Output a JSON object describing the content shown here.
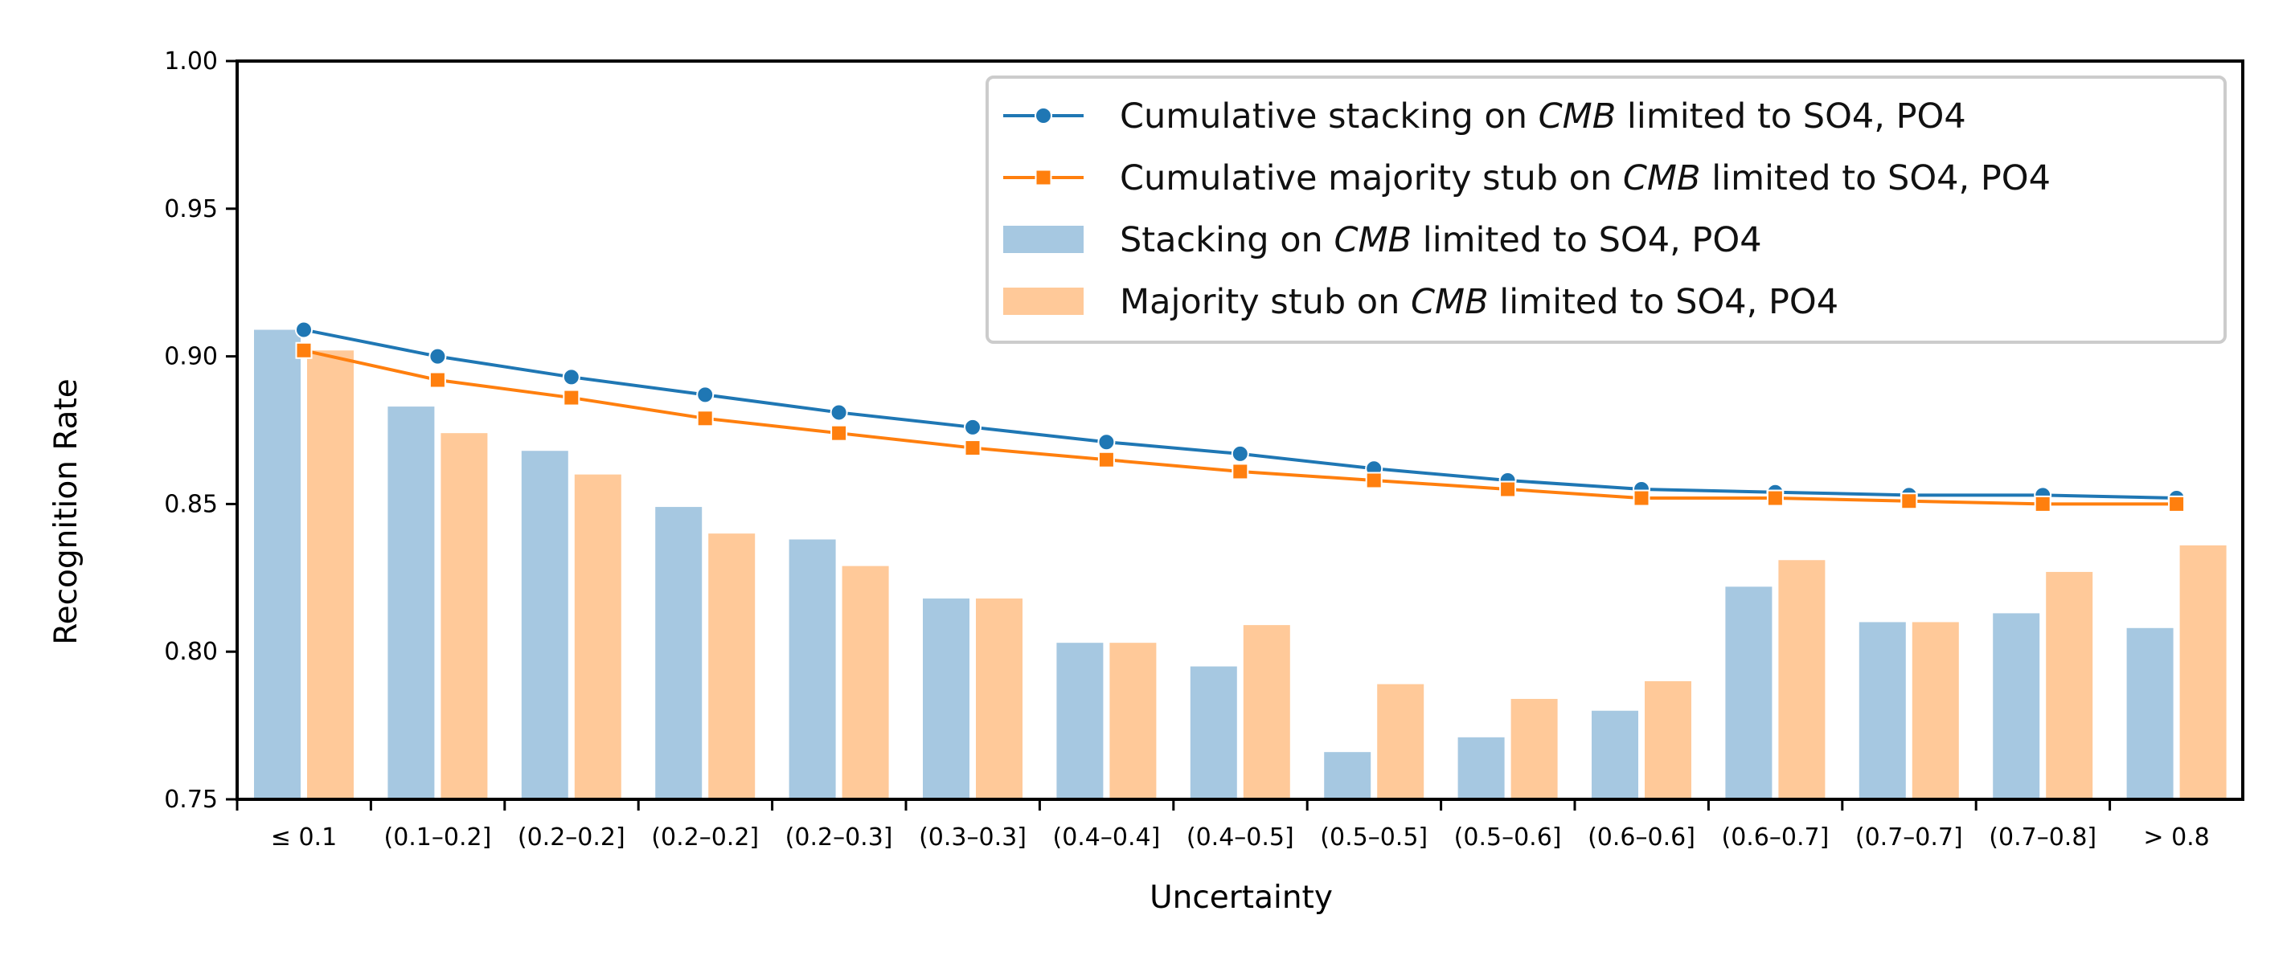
{
  "chart_data": {
    "type": "bar",
    "title": "",
    "xlabel": "Uncertainty",
    "ylabel": "Recognition Rate",
    "ylim": [
      0.75,
      1.0
    ],
    "yticks": [
      "0.75",
      "0.80",
      "0.85",
      "0.90",
      "0.95",
      "1.00"
    ],
    "grid": false,
    "legend_position": "top-right",
    "categories": [
      "≤ 0.1",
      "(0.1–0.2]",
      "(0.2–0.2]",
      "(0.2–0.2]",
      "(0.2–0.3]",
      "(0.3–0.3]",
      "(0.4–0.4]",
      "(0.4–0.5]",
      "(0.5–0.5]",
      "(0.5–0.6]",
      "(0.6–0.6]",
      "(0.6–0.7]",
      "(0.7–0.7]",
      "(0.7–0.8]",
      "> 0.8"
    ],
    "series": [
      {
        "name": "Stacking on CMB limited to SO4, PO4",
        "legend_parts": [
          "Stacking on ",
          "CMB",
          " limited to SO4, PO4"
        ],
        "kind": "bar",
        "color": "#a6c8e1",
        "values": [
          0.909,
          0.883,
          0.868,
          0.849,
          0.838,
          0.818,
          0.803,
          0.795,
          0.766,
          0.771,
          0.78,
          0.822,
          0.81,
          0.813,
          0.808
        ]
      },
      {
        "name": "Majority stub on CMB limited to SO4, PO4",
        "legend_parts": [
          "Majority stub on ",
          "CMB",
          " limited to SO4, PO4"
        ],
        "kind": "bar",
        "color": "#ffc999",
        "values": [
          0.902,
          0.874,
          0.86,
          0.84,
          0.829,
          0.818,
          0.803,
          0.809,
          0.789,
          0.784,
          0.79,
          0.831,
          0.81,
          0.827,
          0.836
        ]
      },
      {
        "name": "Cumulative stacking on CMB limited to SO4, PO4",
        "legend_parts": [
          "Cumulative stacking on ",
          "CMB",
          " limited to SO4, PO4"
        ],
        "kind": "line",
        "marker": "circle",
        "color": "#1f77b4",
        "values": [
          0.909,
          0.9,
          0.893,
          0.887,
          0.881,
          0.876,
          0.871,
          0.867,
          0.862,
          0.858,
          0.855,
          0.854,
          0.853,
          0.853,
          0.852
        ]
      },
      {
        "name": "Cumulative majority stub on CMB limited to SO4, PO4",
        "legend_parts": [
          "Cumulative majority stub on ",
          "CMB",
          " limited to SO4, PO4"
        ],
        "kind": "line",
        "marker": "square",
        "color": "#ff7f0e",
        "values": [
          0.902,
          0.892,
          0.886,
          0.879,
          0.874,
          0.869,
          0.865,
          0.861,
          0.858,
          0.855,
          0.852,
          0.852,
          0.851,
          0.85,
          0.85
        ]
      }
    ]
  }
}
